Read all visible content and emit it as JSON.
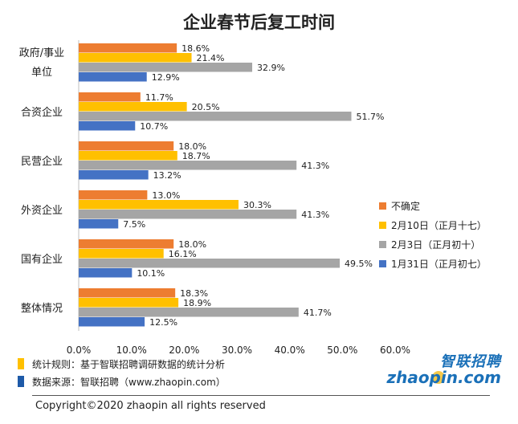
{
  "chart_data": {
    "type": "bar",
    "orientation": "horizontal",
    "title": "企业春节后复工时间",
    "categories": [
      "政府/事业单位",
      "合资企业",
      "民营企业",
      "外资企业",
      "国有企业",
      "整体情况"
    ],
    "category_lines": [
      [
        "政府/事业",
        "单位"
      ],
      [
        "合资企业"
      ],
      [
        "民营企业"
      ],
      [
        "外资企业"
      ],
      [
        "国有企业"
      ],
      [
        "整体情况"
      ]
    ],
    "series": [
      {
        "name": "不确定",
        "color": "#ed7d31",
        "values": [
          18.6,
          11.7,
          18.0,
          13.0,
          18.0,
          18.3
        ]
      },
      {
        "name": "2月10日（正月十七）",
        "color": "#ffc000",
        "values": [
          21.4,
          20.5,
          18.7,
          30.3,
          16.1,
          18.9
        ]
      },
      {
        "name": "2月3日（正月初十）",
        "color": "#a5a5a5",
        "values": [
          32.9,
          51.7,
          41.3,
          41.3,
          49.5,
          41.7
        ]
      },
      {
        "name": "1月31日（正月初七）",
        "color": "#4472c4",
        "values": [
          12.9,
          10.7,
          13.2,
          7.5,
          10.1,
          12.5
        ]
      }
    ],
    "value_suffix": "%",
    "xlim": [
      0,
      60
    ],
    "ticks": [
      0,
      10,
      20,
      30,
      40,
      50,
      60
    ],
    "tick_labels": [
      "0.0%",
      "10.0%",
      "20.0%",
      "30.0%",
      "40.0%",
      "50.0%",
      "60.0%"
    ],
    "grid": false,
    "legend_position": "right"
  },
  "footnotes": [
    {
      "color": "#ffc000",
      "text": "统计规则：基于智联招聘调研数据的统计分析"
    },
    {
      "color": "#1e5aa8",
      "text": "数据来源：智联招聘（www.zhaopin.com）"
    }
  ],
  "logo": {
    "cn": "智联招聘",
    "en": "zhaopin.com"
  },
  "copyright": "Copyright©2020 zhaopin all rights reserved"
}
